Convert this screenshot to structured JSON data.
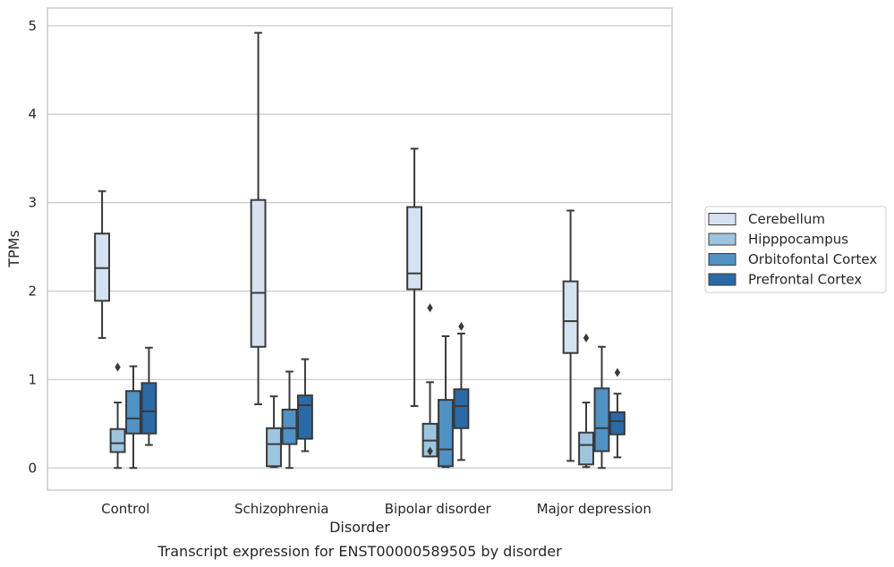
{
  "chart_data": {
    "type": "box",
    "title": "",
    "caption": "Transcript expression for ENST00000589505 by disorder",
    "xlabel": "Disorder",
    "ylabel": "TPMs",
    "ylim": [
      -0.25,
      5.2
    ],
    "yticks": [
      "0",
      "1",
      "2",
      "3",
      "4",
      "5"
    ],
    "grid": "horizontal",
    "legend_position": "right",
    "categories": [
      "Control",
      "Schizophrenia",
      "Bipolar disorder",
      "Major depression"
    ],
    "series": [
      {
        "name": "Cerebellum",
        "color": "#d4e2f1",
        "boxes": [
          {
            "whisker_low": 1.47,
            "q1": 1.89,
            "median": 2.26,
            "q3": 2.65,
            "whisker_high": 3.13,
            "outliers": []
          },
          {
            "whisker_low": 0.72,
            "q1": 1.37,
            "median": 1.98,
            "q3": 3.03,
            "whisker_high": 4.92,
            "outliers": []
          },
          {
            "whisker_low": 0.7,
            "q1": 2.02,
            "median": 2.2,
            "q3": 2.95,
            "whisker_high": 3.61,
            "outliers": []
          },
          {
            "whisker_low": 0.08,
            "q1": 1.3,
            "median": 1.66,
            "q3": 2.11,
            "whisker_high": 2.91,
            "outliers": []
          }
        ]
      },
      {
        "name": "Hipppocampus",
        "color": "#9cc6e0",
        "boxes": [
          {
            "whisker_low": 0.0,
            "q1": 0.18,
            "median": 0.28,
            "q3": 0.44,
            "whisker_high": 0.74,
            "outliers": [
              1.14
            ]
          },
          {
            "whisker_low": 0.01,
            "q1": 0.02,
            "median": 0.27,
            "q3": 0.45,
            "whisker_high": 0.81,
            "outliers": []
          },
          {
            "whisker_low": 0.13,
            "q1": 0.13,
            "median": 0.31,
            "q3": 0.5,
            "whisker_high": 0.97,
            "outliers": [
              0.19,
              1.81
            ]
          },
          {
            "whisker_low": 0.01,
            "q1": 0.04,
            "median": 0.26,
            "q3": 0.4,
            "whisker_high": 0.74,
            "outliers": [
              1.47
            ]
          }
        ]
      },
      {
        "name": "Orbitofontal Cortex",
        "color": "#4f92c4",
        "boxes": [
          {
            "whisker_low": 0.0,
            "q1": 0.39,
            "median": 0.56,
            "q3": 0.87,
            "whisker_high": 1.15,
            "outliers": []
          },
          {
            "whisker_low": 0.0,
            "q1": 0.27,
            "median": 0.45,
            "q3": 0.66,
            "whisker_high": 1.09,
            "outliers": []
          },
          {
            "whisker_low": 0.01,
            "q1": 0.02,
            "median": 0.21,
            "q3": 0.77,
            "whisker_high": 1.49,
            "outliers": []
          },
          {
            "whisker_low": 0.0,
            "q1": 0.19,
            "median": 0.45,
            "q3": 0.9,
            "whisker_high": 1.37,
            "outliers": []
          }
        ]
      },
      {
        "name": "Prefrontal Cortex",
        "color": "#2a6aa8",
        "boxes": [
          {
            "whisker_low": 0.26,
            "q1": 0.39,
            "median": 0.64,
            "q3": 0.96,
            "whisker_high": 1.36,
            "outliers": []
          },
          {
            "whisker_low": 0.19,
            "q1": 0.33,
            "median": 0.71,
            "q3": 0.82,
            "whisker_high": 1.23,
            "outliers": []
          },
          {
            "whisker_low": 0.09,
            "q1": 0.45,
            "median": 0.7,
            "q3": 0.89,
            "whisker_high": 1.52,
            "outliers": [
              1.6
            ]
          },
          {
            "whisker_low": 0.12,
            "q1": 0.38,
            "median": 0.53,
            "q3": 0.63,
            "whisker_high": 0.84,
            "outliers": [
              1.08
            ]
          }
        ]
      }
    ]
  }
}
